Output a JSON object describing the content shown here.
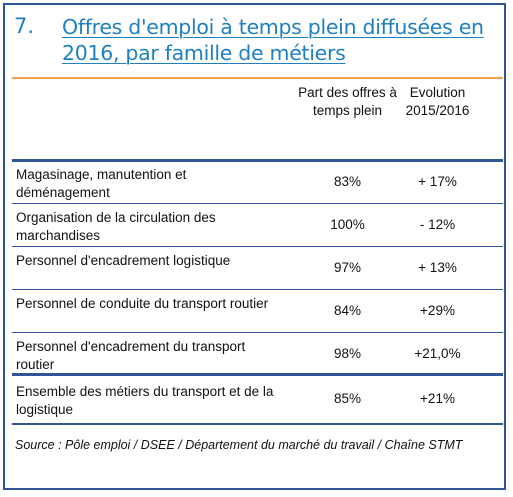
{
  "heading": {
    "number": "7.",
    "title": "Offres d'emploi à temps plein diffusées en 2016, par famille de métiers"
  },
  "columns": {
    "part": "Part des offres à temps plein",
    "evolution": "Evolution 2015/2016"
  },
  "rows": [
    {
      "label": "Magasinage, manutention et déménagement",
      "part": "83%",
      "evolution": "+ 17%"
    },
    {
      "label": "Organisation de la circulation des marchandises",
      "part": "100%",
      "evolution": "- 12%"
    },
    {
      "label": "Personnel d'encadrement logistique",
      "part": "97%",
      "evolution": "+ 13%"
    },
    {
      "label": "Personnel de conduite du transport routier",
      "part": "84%",
      "evolution": "+29%"
    },
    {
      "label": "Personnel d'encadrement du transport routier",
      "part": "98%",
      "evolution": "+21,0%"
    },
    {
      "label": "Ensemble des métiers du transport et de la logistique",
      "part": "85%",
      "evolution": "+21%"
    }
  ],
  "source": "Source : Pôle emploi / DSEE / Département du marché du travail / Chaîne STMT",
  "colors": {
    "frame": "#2f5597",
    "title": "#1f7fbf",
    "accent_rule": "#f0a150"
  }
}
